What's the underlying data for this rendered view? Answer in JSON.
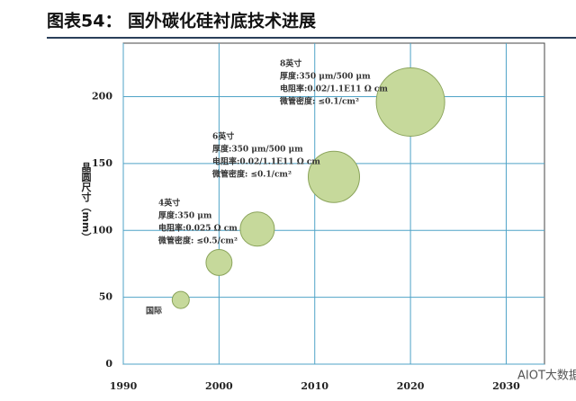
{
  "chart_data": {
    "type": "bubble",
    "title": "图表54：  国外碳化硅衬底技术进展",
    "y_label": "晶圆尺寸（mm）",
    "x": [
      1996,
      2000,
      2004,
      2012,
      2020
    ],
    "values": [
      48,
      76,
      101,
      140,
      196
    ],
    "sizes": [
      50,
      76,
      100,
      150,
      200
    ],
    "color": "#c6d99b",
    "xlim": [
      1990,
      2034
    ],
    "xticks": [
      1990,
      2000,
      2010,
      2020,
      2030
    ],
    "ylim": [
      0,
      240
    ],
    "yticks": [
      0,
      50,
      100,
      150,
      200
    ],
    "grid": true,
    "annotations": [
      [
        "国际"
      ],
      [
        "4英寸",
        "厚度:350 μm",
        "电阻率:0.025 Ω cm",
        "微管密度: ≤0.5/cm²"
      ],
      [
        "6英寸",
        "厚度:350 μm/500 μm",
        "电阻率:0.02/1.1E11 Ω cm",
        "微管密度: ≤0.1/cm²"
      ],
      [
        "8英寸",
        "厚度:350 μm/500 μm",
        "电阻率:0.02/1.1E11 Ω cm",
        "微管密度: ≤0.1/cm²"
      ]
    ],
    "watermark": "AIOT大数据"
  }
}
